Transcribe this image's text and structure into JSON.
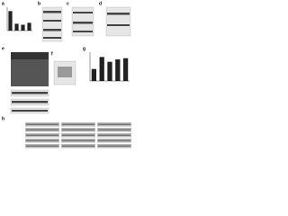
{
  "panels": [
    "a",
    "b",
    "c",
    "d",
    "e",
    "f",
    "g",
    "h"
  ],
  "bar_a": {
    "type": "bar",
    "values": [
      1,
      0.35,
      0.3,
      0.4
    ],
    "color": "#222222",
    "ylim": [
      0,
      1.2
    ]
  },
  "bar_g": {
    "type": "bar",
    "values": [
      0.5,
      1,
      0.8,
      0.9,
      0.95
    ],
    "color": "#222222",
    "ylim": [
      0,
      1.2
    ]
  }
}
